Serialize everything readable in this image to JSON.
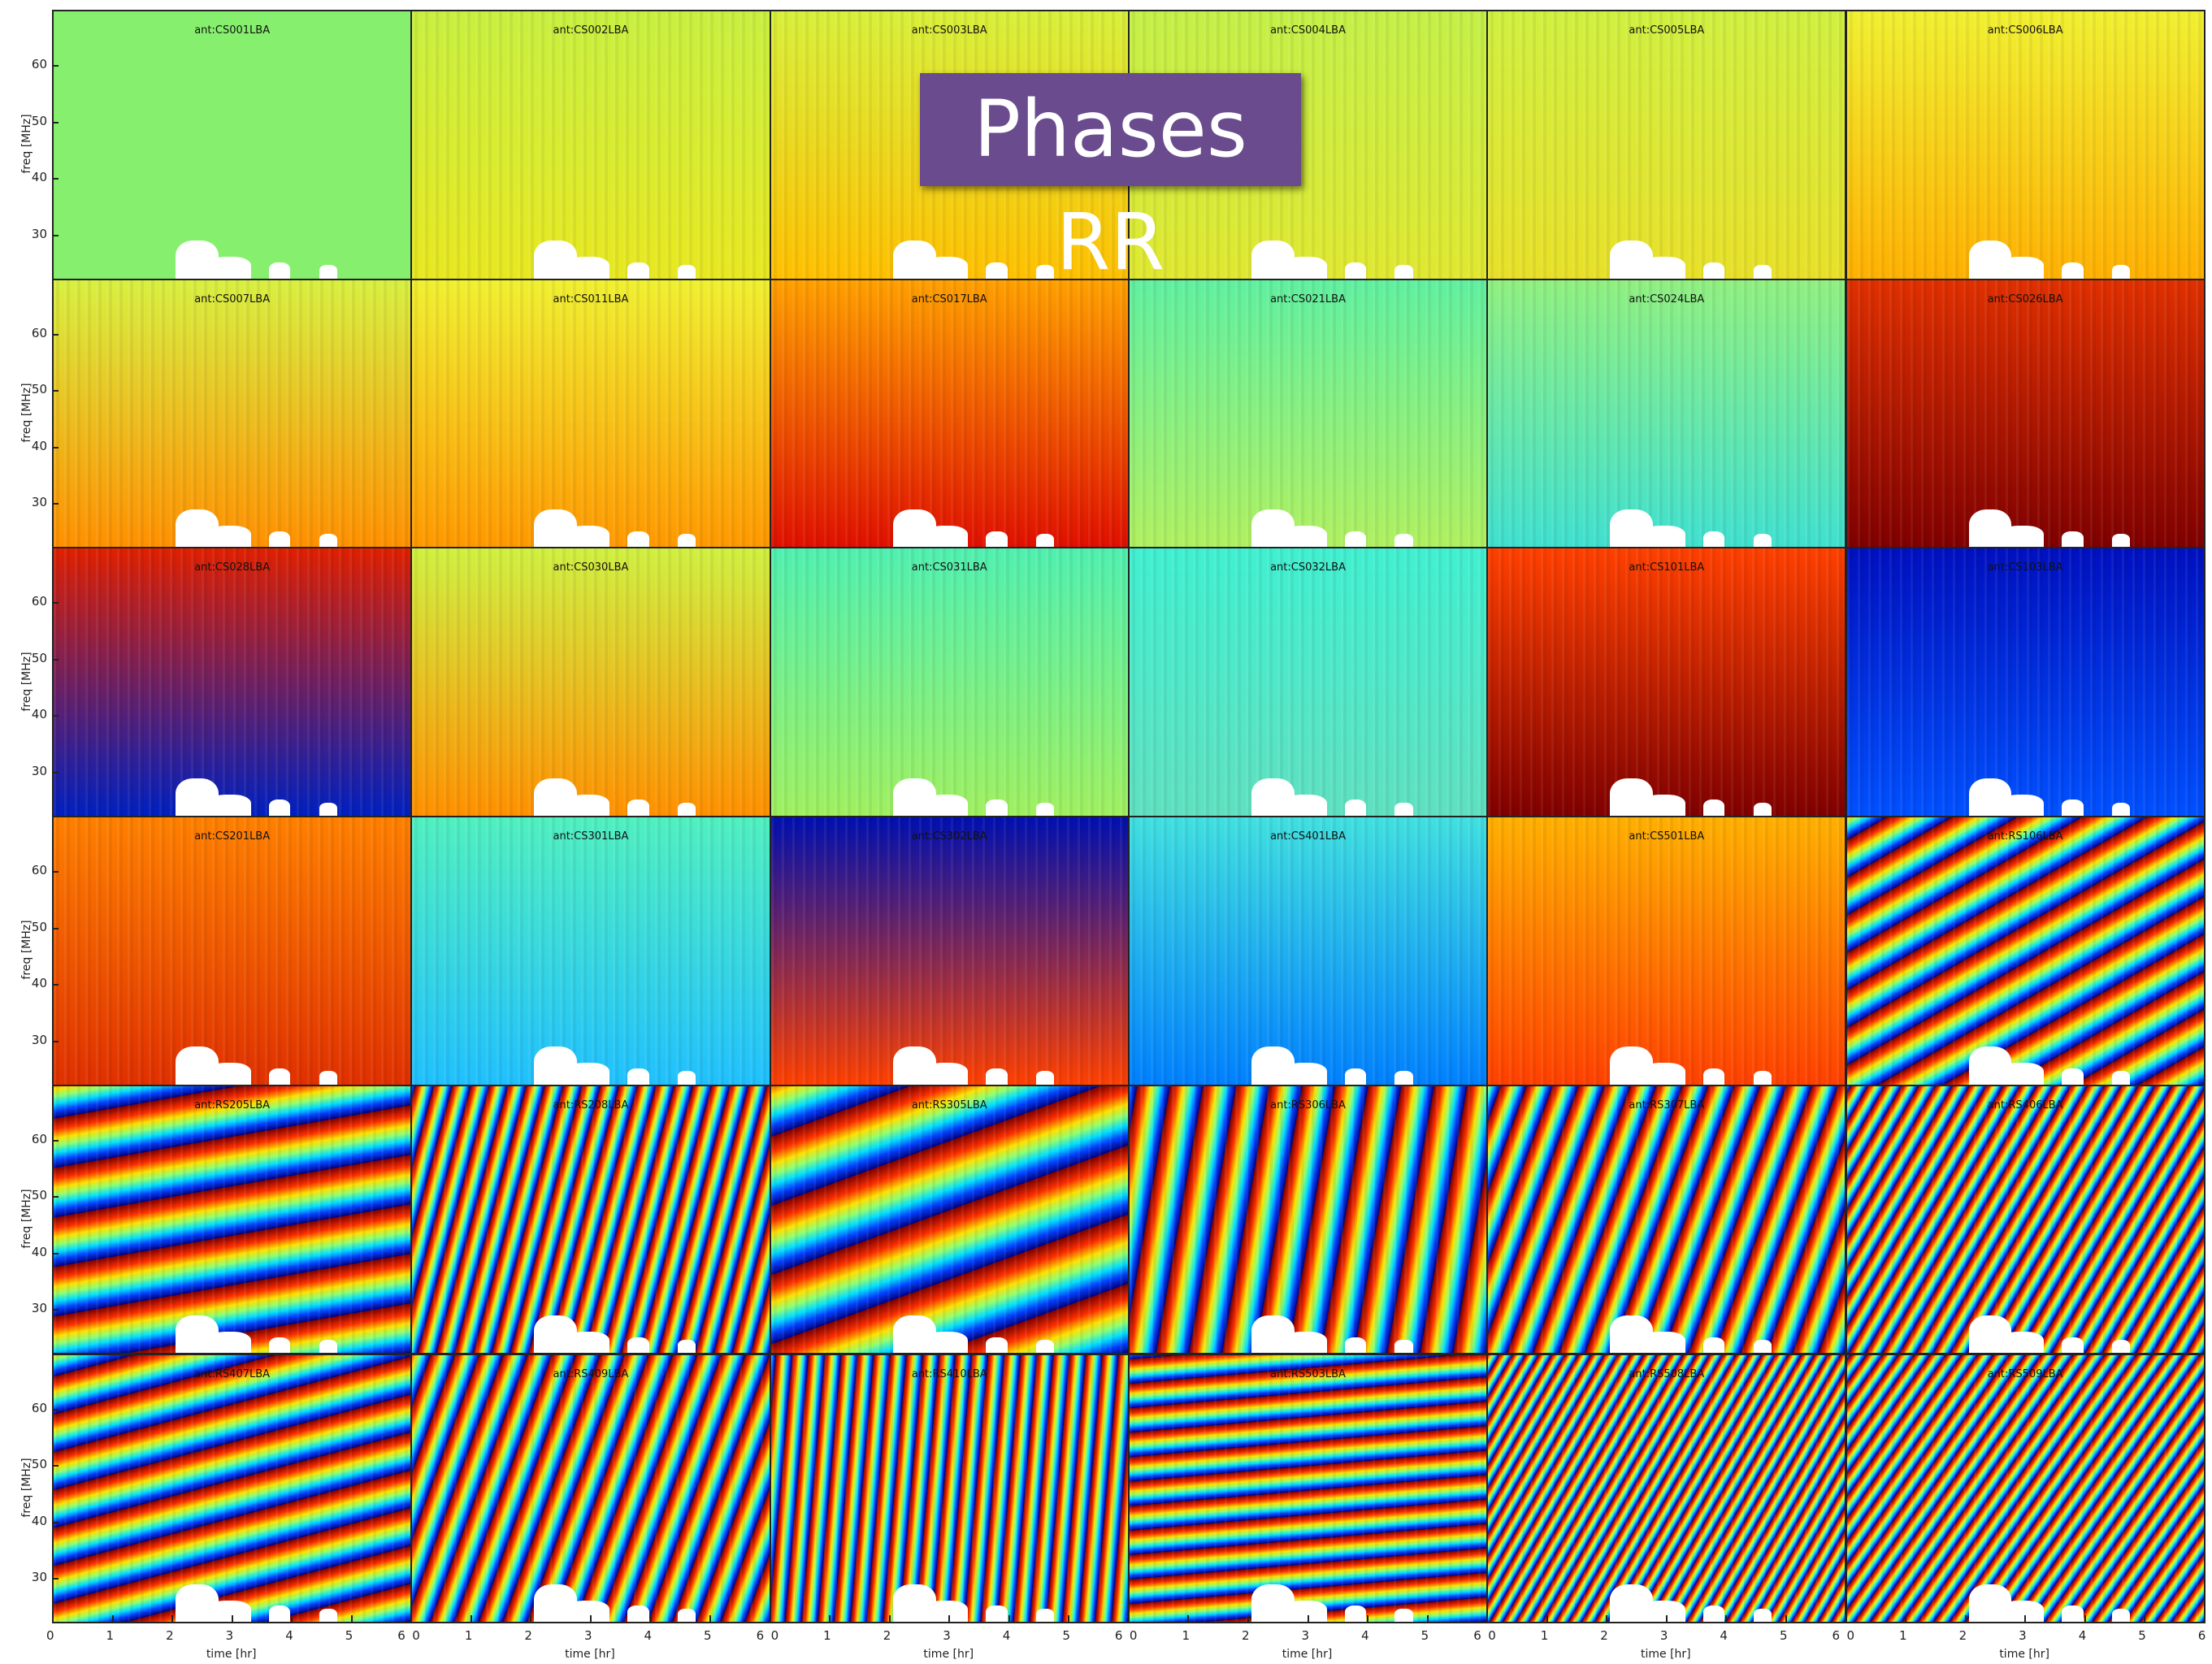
{
  "title": "Phases RR",
  "panels": [
    {
      "label": "ant:CS001LBA"
    },
    {
      "label": "ant:CS002LBA"
    },
    {
      "label": "ant:CS003LBA"
    },
    {
      "label": "ant:CS004LBA"
    },
    {
      "label": "ant:CS005LBA"
    },
    {
      "label": "ant:CS006LBA"
    },
    {
      "label": "ant:CS007LBA"
    },
    {
      "label": "ant:CS011LBA"
    },
    {
      "label": "ant:CS017LBA"
    },
    {
      "label": "ant:CS021LBA"
    },
    {
      "label": "ant:CS024LBA"
    },
    {
      "label": "ant:CS026LBA"
    },
    {
      "label": "ant:CS028LBA"
    },
    {
      "label": "ant:CS030LBA"
    },
    {
      "label": "ant:CS031LBA"
    },
    {
      "label": "ant:CS032LBA"
    },
    {
      "label": "ant:CS101LBA"
    },
    {
      "label": "ant:CS103LBA"
    },
    {
      "label": "ant:CS201LBA"
    },
    {
      "label": "ant:CS301LBA"
    },
    {
      "label": "ant:CS302LBA"
    },
    {
      "label": "ant:CS401LBA"
    },
    {
      "label": "ant:CS501LBA"
    },
    {
      "label": "ant:RS106LBA"
    },
    {
      "label": "ant:RS205LBA"
    },
    {
      "label": "ant:RS208LBA"
    },
    {
      "label": "ant:RS305LBA"
    },
    {
      "label": "ant:RS306LBA"
    },
    {
      "label": "ant:RS307LBA"
    },
    {
      "label": "ant:RS406LBA"
    },
    {
      "label": "ant:RS407LBA"
    },
    {
      "label": "ant:RS409LBA"
    },
    {
      "label": "ant:RS410LBA"
    },
    {
      "label": "ant:RS503LBA"
    },
    {
      "label": "ant:RS508LBA"
    },
    {
      "label": "ant:RS509LBA"
    }
  ],
  "y_axis": {
    "label": "freq [MHz]",
    "ylim": [
      22.2,
      69.8
    ],
    "ticks": [
      30,
      40,
      50,
      60
    ]
  },
  "x_axis": {
    "label": "time [hr]",
    "xlim": [
      0,
      6
    ],
    "ticks": [
      0,
      1,
      2,
      3,
      4,
      5,
      6
    ]
  }
}
